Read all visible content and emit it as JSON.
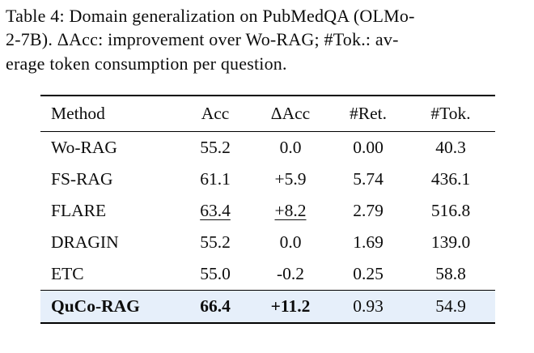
{
  "caption": {
    "line1": "Table 4: Domain generalization on PubMedQA (OLMo-",
    "line2": "2-7B). ΔAcc: improvement over Wo-RAG; #Tok.: av-",
    "line3": "erage token consumption per question."
  },
  "colors": {
    "row_highlight": "#e6effa",
    "text": "#0d0d0d",
    "rule": "#000000"
  },
  "table": {
    "headers": [
      "Method",
      "Acc",
      "ΔAcc",
      "#Ret.",
      "#Tok."
    ],
    "rows": [
      {
        "method": "Wo-RAG",
        "acc": "55.2",
        "dacc": "0.0",
        "ret": "0.00",
        "tok": "40.3"
      },
      {
        "method": "FS-RAG",
        "acc": "61.1",
        "dacc": "+5.9",
        "ret": "5.74",
        "tok": "436.1"
      },
      {
        "method": "FLARE",
        "acc": "63.4",
        "dacc": "+8.2",
        "ret": "2.79",
        "tok": "516.8"
      },
      {
        "method": "DRAGIN",
        "acc": "55.2",
        "dacc": "0.0",
        "ret": "1.69",
        "tok": "139.0"
      },
      {
        "method": "ETC",
        "acc": "55.0",
        "dacc": "-0.2",
        "ret": "0.25",
        "tok": "58.8"
      },
      {
        "method": "QuCo-RAG",
        "acc": "66.4",
        "dacc": "+11.2",
        "ret": "0.93",
        "tok": "54.9"
      }
    ]
  }
}
